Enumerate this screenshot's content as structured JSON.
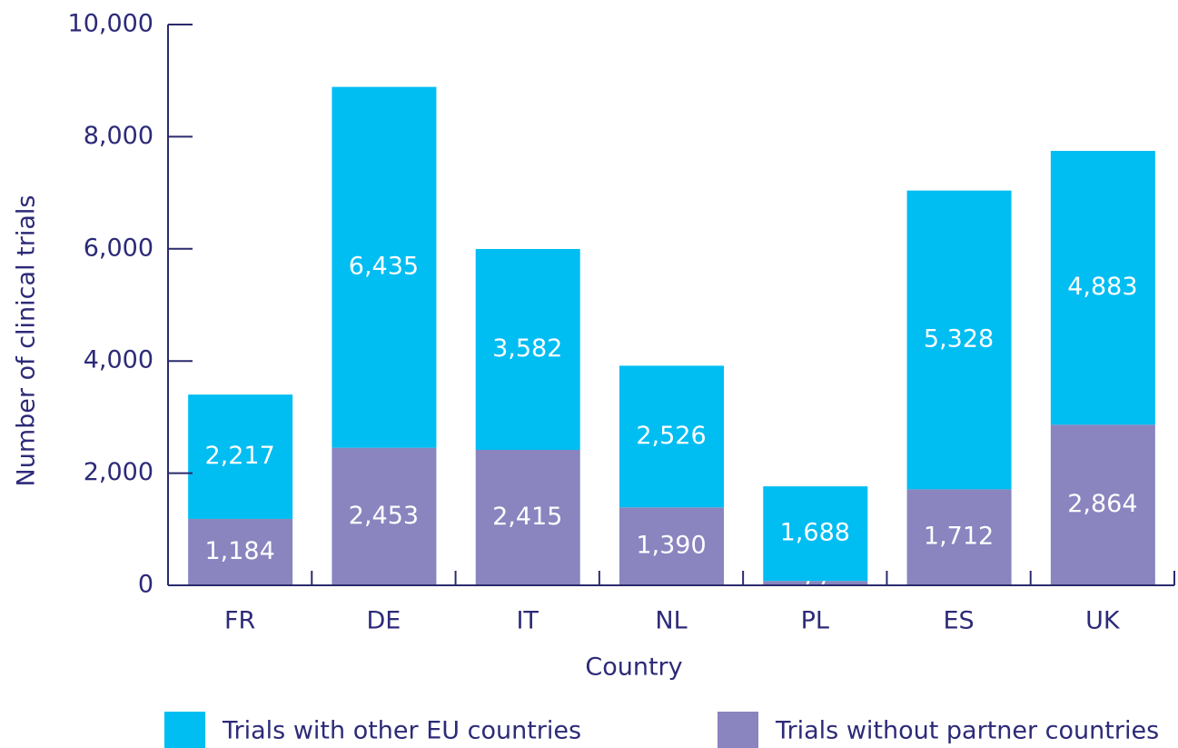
{
  "chart_data": {
    "type": "bar",
    "stacked": true,
    "x_label": "Country",
    "y_label": "Number of clinical trials",
    "categories": [
      "FR",
      "DE",
      "IT",
      "NL",
      "PL",
      "ES",
      "UK"
    ],
    "series": [
      {
        "name": "Trials with other EU countries",
        "color": "#00bdf2",
        "values": [
          2217,
          6435,
          3582,
          2526,
          1688,
          5328,
          4883
        ],
        "value_labels": [
          "2,217",
          "6,435",
          "3,582",
          "2,526",
          "1,688",
          "5,328",
          "4,883"
        ]
      },
      {
        "name": "Trials without partner countries",
        "color": "#8a84bf",
        "values": [
          1184,
          2453,
          2415,
          1390,
          77,
          1712,
          2864
        ],
        "value_labels": [
          "1,184",
          "2,453",
          "2,415",
          "1,390",
          "77",
          "1,712",
          "2,864"
        ]
      }
    ],
    "ylim": [
      0,
      10000
    ],
    "yticks": [
      0,
      {
        "value": 2000,
        "label": "2,000"
      },
      {
        "value": 4000,
        "label": "4,000"
      },
      {
        "value": 6000,
        "label": "6,000"
      },
      {
        "value": 8000,
        "label": "8,000"
      },
      {
        "value": 10000,
        "label": "10,000"
      }
    ],
    "legend": "bottom"
  }
}
